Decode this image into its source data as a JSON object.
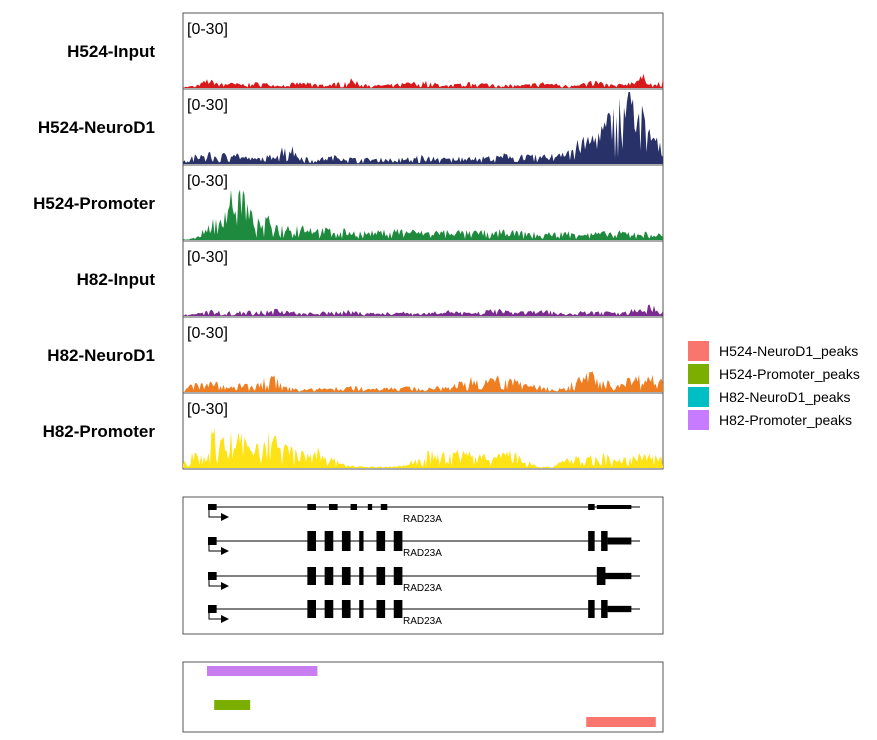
{
  "chart_data": {
    "type": "area",
    "tracks": [
      {
        "name": "H524-Input",
        "range": "[0-30]",
        "ylim": [
          0,
          30
        ],
        "color": "#d7191c",
        "profile": [
          [
            0,
            0.3
          ],
          [
            0.03,
            1
          ],
          [
            0.05,
            3
          ],
          [
            0.08,
            2
          ],
          [
            0.12,
            1.5
          ],
          [
            0.16,
            2
          ],
          [
            0.2,
            1
          ],
          [
            0.24,
            2
          ],
          [
            0.3,
            1.2
          ],
          [
            0.35,
            3
          ],
          [
            0.4,
            1
          ],
          [
            0.45,
            1.5
          ],
          [
            0.5,
            2.5
          ],
          [
            0.55,
            1
          ],
          [
            0.6,
            2
          ],
          [
            0.65,
            1.5
          ],
          [
            0.7,
            1
          ],
          [
            0.75,
            2
          ],
          [
            0.8,
            1
          ],
          [
            0.86,
            2.5
          ],
          [
            0.9,
            1
          ],
          [
            0.93,
            2
          ],
          [
            0.96,
            4.5
          ],
          [
            0.98,
            1
          ],
          [
            1,
            3
          ]
        ]
      },
      {
        "name": "H524-NeuroD1",
        "range": "[0-30]",
        "ylim": [
          0,
          30
        ],
        "color": "#283168",
        "profile": [
          [
            0,
            1
          ],
          [
            0.02,
            3
          ],
          [
            0.05,
            4
          ],
          [
            0.08,
            3
          ],
          [
            0.1,
            6
          ],
          [
            0.12,
            3
          ],
          [
            0.15,
            2
          ],
          [
            0.18,
            3
          ],
          [
            0.2,
            5
          ],
          [
            0.22,
            8
          ],
          [
            0.24,
            3
          ],
          [
            0.28,
            2
          ],
          [
            0.32,
            3
          ],
          [
            0.36,
            2
          ],
          [
            0.4,
            2
          ],
          [
            0.45,
            2
          ],
          [
            0.5,
            3
          ],
          [
            0.55,
            2
          ],
          [
            0.6,
            3
          ],
          [
            0.65,
            2.5
          ],
          [
            0.68,
            4
          ],
          [
            0.72,
            3
          ],
          [
            0.76,
            3
          ],
          [
            0.8,
            6
          ],
          [
            0.84,
            9
          ],
          [
            0.87,
            13
          ],
          [
            0.9,
            20
          ],
          [
            0.92,
            25
          ],
          [
            0.93,
            29
          ],
          [
            0.95,
            22
          ],
          [
            0.97,
            14
          ],
          [
            0.99,
            8
          ],
          [
            1,
            5
          ]
        ]
      },
      {
        "name": "H524-Promoter",
        "range": "[0-30]",
        "ylim": [
          0,
          30
        ],
        "color": "#1e8a3e",
        "profile": [
          [
            0,
            0.5
          ],
          [
            0.03,
            1
          ],
          [
            0.05,
            5
          ],
          [
            0.07,
            8
          ],
          [
            0.09,
            12
          ],
          [
            0.1,
            18
          ],
          [
            0.11,
            17
          ],
          [
            0.12,
            21
          ],
          [
            0.13,
            15
          ],
          [
            0.14,
            10
          ],
          [
            0.16,
            6
          ],
          [
            0.18,
            8
          ],
          [
            0.2,
            5
          ],
          [
            0.24,
            6
          ],
          [
            0.28,
            4
          ],
          [
            0.32,
            4
          ],
          [
            0.36,
            3
          ],
          [
            0.4,
            3
          ],
          [
            0.45,
            4
          ],
          [
            0.5,
            3
          ],
          [
            0.55,
            3.5
          ],
          [
            0.6,
            3
          ],
          [
            0.65,
            3.5
          ],
          [
            0.7,
            3
          ],
          [
            0.75,
            2.5
          ],
          [
            0.8,
            3
          ],
          [
            0.85,
            2.5
          ],
          [
            0.9,
            3
          ],
          [
            0.95,
            3
          ],
          [
            1,
            2
          ]
        ]
      },
      {
        "name": "H82-Input",
        "range": "[0-30]",
        "ylim": [
          0,
          30
        ],
        "color": "#7b2a8f",
        "profile": [
          [
            0,
            0.5
          ],
          [
            0.03,
            1
          ],
          [
            0.06,
            2
          ],
          [
            0.1,
            1.5
          ],
          [
            0.15,
            2
          ],
          [
            0.2,
            2.5
          ],
          [
            0.25,
            1
          ],
          [
            0.3,
            1.5
          ],
          [
            0.35,
            2
          ],
          [
            0.4,
            1
          ],
          [
            0.45,
            1.5
          ],
          [
            0.5,
            1
          ],
          [
            0.55,
            2
          ],
          [
            0.6,
            1
          ],
          [
            0.65,
            2.5
          ],
          [
            0.7,
            1.5
          ],
          [
            0.75,
            2
          ],
          [
            0.8,
            1
          ],
          [
            0.85,
            2
          ],
          [
            0.9,
            1.5
          ],
          [
            0.93,
            2.5
          ],
          [
            0.97,
            4
          ],
          [
            1,
            2
          ]
        ]
      },
      {
        "name": "H82-NeuroD1",
        "range": "[0-30]",
        "ylim": [
          0,
          30
        ],
        "color": "#ef7e22",
        "profile": [
          [
            0,
            0.5
          ],
          [
            0.02,
            3
          ],
          [
            0.05,
            4
          ],
          [
            0.08,
            3
          ],
          [
            0.1,
            2
          ],
          [
            0.12,
            3
          ],
          [
            0.15,
            2
          ],
          [
            0.17,
            5
          ],
          [
            0.19,
            6
          ],
          [
            0.21,
            2
          ],
          [
            0.25,
            1
          ],
          [
            0.3,
            1.5
          ],
          [
            0.35,
            2
          ],
          [
            0.4,
            1.5
          ],
          [
            0.45,
            2
          ],
          [
            0.5,
            1.5
          ],
          [
            0.55,
            2
          ],
          [
            0.6,
            5
          ],
          [
            0.63,
            4
          ],
          [
            0.66,
            6
          ],
          [
            0.68,
            5
          ],
          [
            0.7,
            4
          ],
          [
            0.75,
            2
          ],
          [
            0.8,
            2
          ],
          [
            0.82,
            5
          ],
          [
            0.85,
            7
          ],
          [
            0.88,
            4
          ],
          [
            0.9,
            3
          ],
          [
            0.93,
            5
          ],
          [
            0.96,
            6
          ],
          [
            1,
            5
          ]
        ]
      },
      {
        "name": "H82-Promoter",
        "range": "[0-30]",
        "ylim": [
          0,
          30
        ],
        "color": "#fde216",
        "profile": [
          [
            0,
            2
          ],
          [
            0.02,
            6
          ],
          [
            0.04,
            8
          ],
          [
            0.06,
            12
          ],
          [
            0.07,
            14
          ],
          [
            0.08,
            10
          ],
          [
            0.1,
            12
          ],
          [
            0.12,
            11
          ],
          [
            0.14,
            9
          ],
          [
            0.16,
            10
          ],
          [
            0.18,
            13
          ],
          [
            0.2,
            9
          ],
          [
            0.22,
            8
          ],
          [
            0.24,
            6
          ],
          [
            0.26,
            5
          ],
          [
            0.28,
            7
          ],
          [
            0.3,
            4
          ],
          [
            0.32,
            3
          ],
          [
            0.34,
            1
          ],
          [
            0.38,
            0.5
          ],
          [
            0.42,
            0.5
          ],
          [
            0.46,
            1
          ],
          [
            0.48,
            3
          ],
          [
            0.5,
            5
          ],
          [
            0.52,
            6
          ],
          [
            0.55,
            5
          ],
          [
            0.58,
            7
          ],
          [
            0.6,
            6
          ],
          [
            0.63,
            6
          ],
          [
            0.66,
            5
          ],
          [
            0.68,
            6
          ],
          [
            0.7,
            5
          ],
          [
            0.72,
            3
          ],
          [
            0.74,
            0.5
          ],
          [
            0.77,
            0.5
          ],
          [
            0.79,
            3
          ],
          [
            0.82,
            5
          ],
          [
            0.85,
            4
          ],
          [
            0.88,
            5
          ],
          [
            0.9,
            4
          ],
          [
            0.93,
            4
          ],
          [
            0.96,
            5
          ],
          [
            1,
            4
          ]
        ]
      }
    ],
    "gene_track": {
      "gene": "RAD23A",
      "transcripts": [
        {
          "label": "RAD23A",
          "exons": [
            [
              0.0,
              0.02
            ],
            [
              0.23,
              0.25
            ],
            [
              0.28,
              0.3
            ],
            [
              0.33,
              0.345
            ],
            [
              0.37,
              0.38
            ],
            [
              0.4,
              0.415
            ],
            [
              0.88,
              0.895
            ],
            [
              0.9,
              0.98
            ]
          ]
        },
        {
          "label": "RAD23A",
          "exons": [
            [
              0.0,
              0.02
            ],
            [
              0.23,
              0.25
            ],
            [
              0.27,
              0.29
            ],
            [
              0.31,
              0.33
            ],
            [
              0.35,
              0.36
            ],
            [
              0.39,
              0.41
            ],
            [
              0.43,
              0.45
            ],
            [
              0.88,
              0.895
            ],
            [
              0.91,
              0.925
            ],
            [
              0.925,
              0.98
            ]
          ]
        },
        {
          "label": "RAD23A",
          "exons": [
            [
              0.0,
              0.02
            ],
            [
              0.23,
              0.25
            ],
            [
              0.27,
              0.29
            ],
            [
              0.31,
              0.33
            ],
            [
              0.35,
              0.36
            ],
            [
              0.39,
              0.41
            ],
            [
              0.43,
              0.45
            ],
            [
              0.9,
              0.92
            ],
            [
              0.92,
              0.98
            ]
          ]
        },
        {
          "label": "RAD23A",
          "exons": [
            [
              0.0,
              0.02
            ],
            [
              0.23,
              0.25
            ],
            [
              0.27,
              0.29
            ],
            [
              0.31,
              0.33
            ],
            [
              0.35,
              0.36
            ],
            [
              0.39,
              0.41
            ],
            [
              0.43,
              0.45
            ],
            [
              0.88,
              0.895
            ],
            [
              0.91,
              0.925
            ],
            [
              0.925,
              0.98
            ]
          ]
        }
      ]
    },
    "peaks": [
      {
        "name": "H82-Promoter_peaks",
        "start": 0.05,
        "end": 0.28,
        "color": "#c87df0"
      },
      {
        "name": "H524-Promoter_peaks",
        "start": 0.065,
        "end": 0.14,
        "color": "#7cae00"
      },
      {
        "name": "H524-NeuroD1_peaks",
        "start": 0.84,
        "end": 0.985,
        "color": "#f8766d"
      }
    ],
    "legend": {
      "position": "right",
      "items": [
        {
          "label": "H524-NeuroD1_peaks",
          "color": "#f8766d"
        },
        {
          "label": "H524-Promoter_peaks",
          "color": "#7cae00"
        },
        {
          "label": "H82-NeuroD1_peaks",
          "color": "#00bfc4"
        },
        {
          "label": "H82-Promoter_peaks",
          "color": "#c77cff"
        }
      ]
    }
  }
}
